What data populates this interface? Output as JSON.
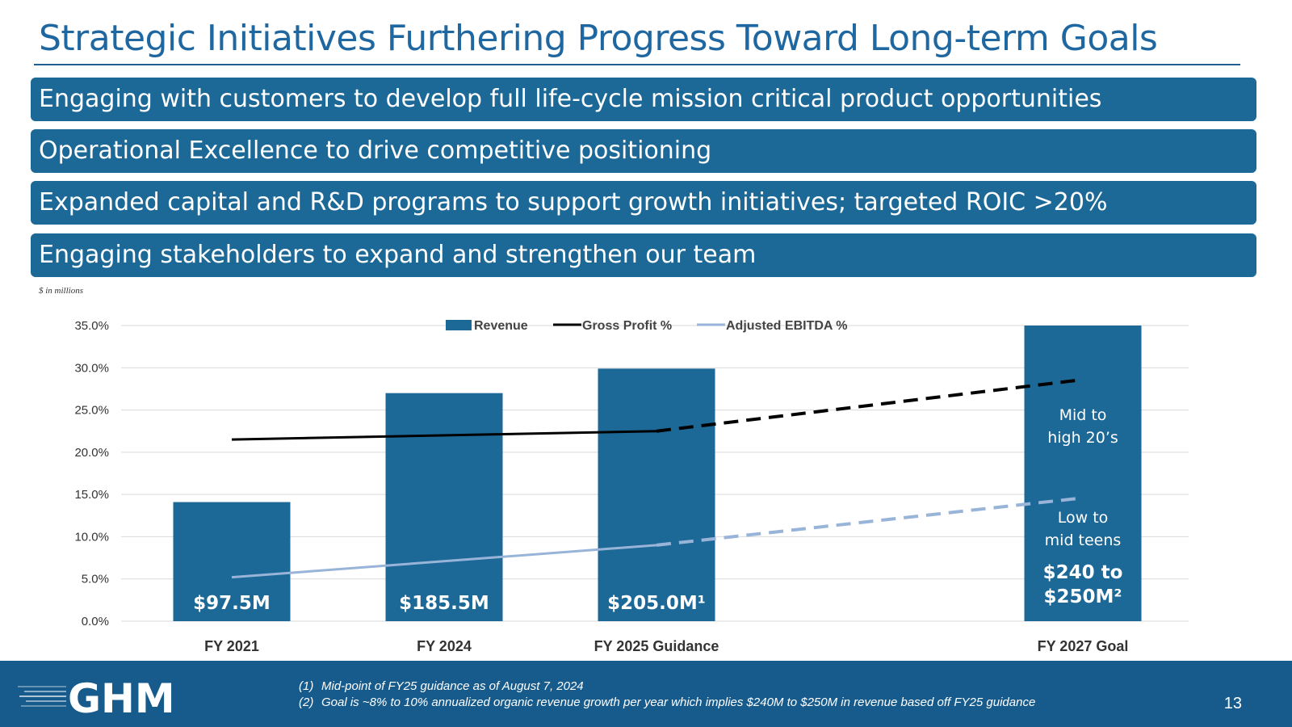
{
  "slide": {
    "title": "Strategic Initiatives Furthering Progress Toward Long-term Goals",
    "banners": [
      "Engaging with customers to develop full life-cycle mission critical product opportunities",
      "Operational Excellence to drive competitive positioning",
      "Expanded capital and R&D programs to support growth initiatives; targeted ROIC >20%",
      "Engaging stakeholders to expand and strengthen our team"
    ],
    "units_note": "$ in millions",
    "page_number": "13"
  },
  "footer": {
    "logo_text": "GHM",
    "notes": [
      {
        "num": "(1)",
        "text": "Mid-point of FY25 guidance as of August 7, 2024"
      },
      {
        "num": "(2)",
        "text": "Goal is ~8% to 10% annualized organic revenue growth per year which implies $240M to $250M in revenue based off FY25 guidance"
      }
    ]
  },
  "colors": {
    "bar": "#1c6897",
    "gross_profit": "#000000",
    "ebitda": "#98b4d8",
    "footer": "#175b8c"
  },
  "chart_data": {
    "type": "bar",
    "categories": [
      "FY 2021",
      "FY 2024",
      "FY 2025 Guidance",
      "FY 2027 Goal"
    ],
    "y_axis": {
      "min": 0,
      "max": 35,
      "step": 5,
      "tick_labels": [
        "0.0%",
        "5.0%",
        "10.0%",
        "15.0%",
        "20.0%",
        "25.0%",
        "30.0%",
        "35.0%"
      ]
    },
    "legend": {
      "position": "top",
      "items": [
        "Revenue",
        "Gross Profit %",
        "Adjusted EBITDA %"
      ]
    },
    "series": [
      {
        "name": "Revenue",
        "kind": "bar",
        "scaled_percent": [
          14.1,
          27.0,
          29.9,
          35.0
        ],
        "labels": [
          "$97.5M",
          "$185.5M",
          "$205.0M¹",
          "$240 to $250M²"
        ]
      },
      {
        "name": "Gross Profit %",
        "kind": "line",
        "values": [
          21.5,
          null,
          22.5,
          28.6
        ],
        "solid_until_index": 2
      },
      {
        "name": "Adjusted EBITDA %",
        "kind": "line",
        "values": [
          5.2,
          null,
          9.0,
          14.6
        ],
        "solid_until_index": 2
      }
    ],
    "annotations": [
      {
        "text": "Mid to high 20’s",
        "line1": "Mid to",
        "line2": "high 20’s"
      },
      {
        "text": "Low to mid teens",
        "line1": "Low to",
        "line2": "mid teens"
      }
    ],
    "goal_label": {
      "line1": "$240 to",
      "line2": "$250M²"
    }
  }
}
